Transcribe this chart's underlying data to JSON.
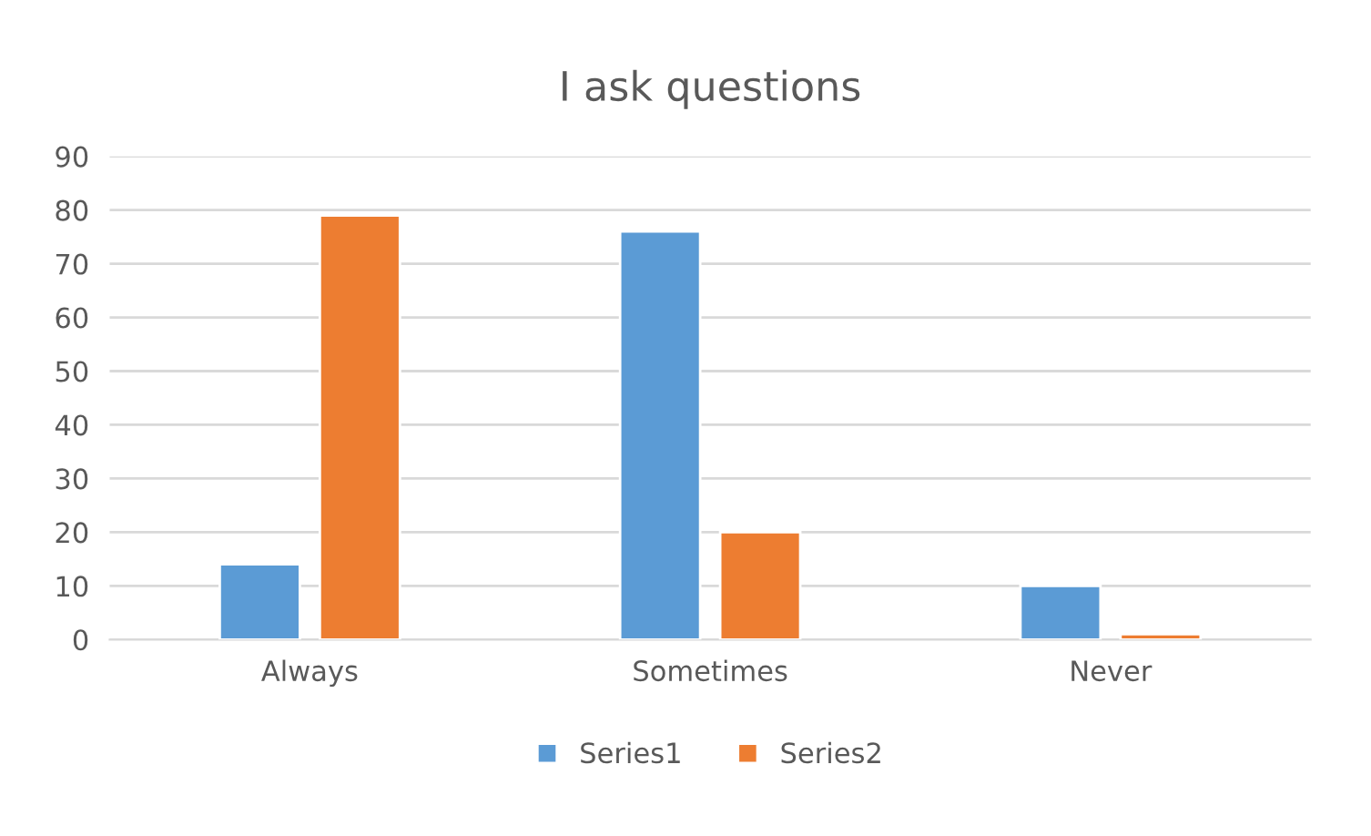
{
  "chart_data": {
    "type": "bar",
    "title": "I ask questions",
    "categories": [
      "Always",
      "Sometimes",
      "Never"
    ],
    "series": [
      {
        "name": "Series1",
        "color": "#5b9bd5",
        "values": [
          14,
          76,
          10
        ]
      },
      {
        "name": "Series2",
        "color": "#ed7d31",
        "values": [
          79,
          20,
          1
        ]
      }
    ],
    "ylim": [
      0,
      90
    ],
    "yticks": [
      0,
      10,
      20,
      30,
      40,
      50,
      60,
      70,
      80,
      90
    ],
    "grid": "y",
    "legend": "bottom"
  }
}
